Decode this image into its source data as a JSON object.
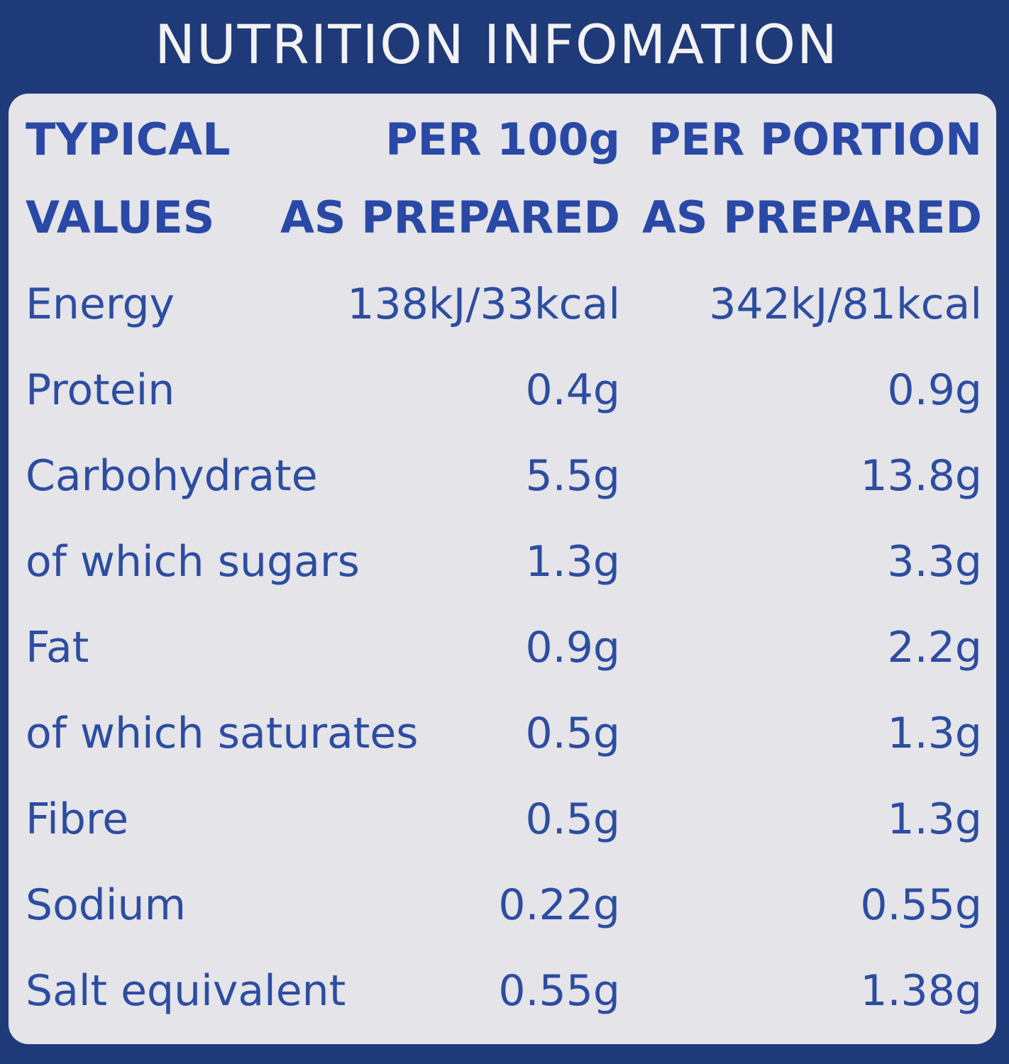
{
  "title": "NUTRITION INFOMATION",
  "table": {
    "header": [
      [
        "TYPICAL",
        "VALUES"
      ],
      [
        "PER 100g",
        "AS PREPARED"
      ],
      [
        "PER PORTION",
        "AS PREPARED"
      ]
    ],
    "rows": [
      [
        "Energy",
        "138kJ/33kcal",
        "342kJ/81kcal"
      ],
      [
        "Protein",
        "0.4g",
        "0.9g"
      ],
      [
        "Carbohydrate",
        "5.5g",
        "13.8g"
      ],
      [
        "of which sugars",
        "1.3g",
        "3.3g"
      ],
      [
        "Fat",
        "0.9g",
        "2.2g"
      ],
      [
        "of which saturates",
        "0.5g",
        "1.3g"
      ],
      [
        "Fibre",
        "0.5g",
        "1.3g"
      ],
      [
        "Sodium",
        "0.22g",
        "0.55g"
      ],
      [
        "Salt equivalent",
        "0.55g",
        "1.38g"
      ]
    ]
  }
}
